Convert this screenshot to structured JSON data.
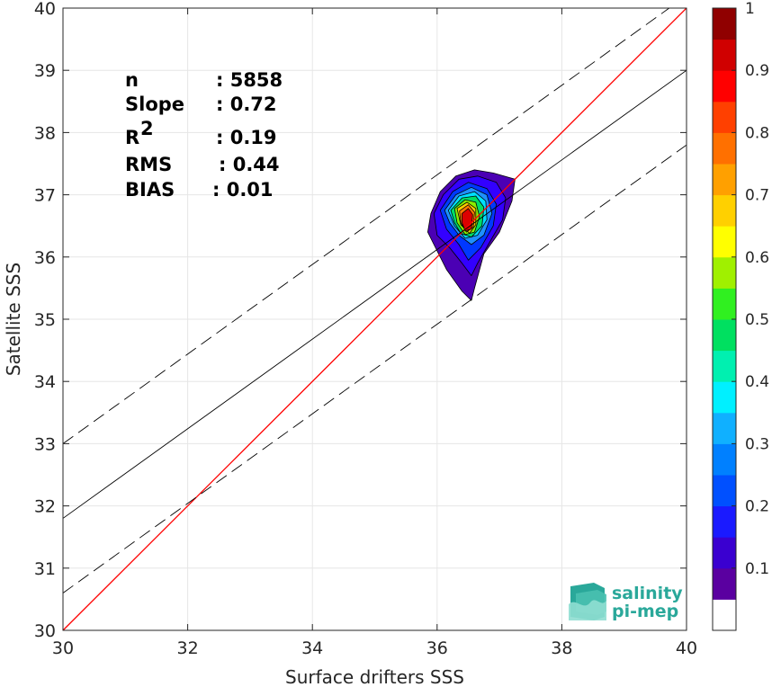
{
  "chart_data": {
    "type": "scatter",
    "title": "",
    "xlabel": "Surface drifters SSS",
    "ylabel": "Satellite SSS",
    "xlim": [
      30,
      40
    ],
    "ylim": [
      30,
      40
    ],
    "xticks": [
      30,
      32,
      34,
      36,
      38,
      40
    ],
    "yticks": [
      30,
      31,
      32,
      33,
      34,
      35,
      36,
      37,
      38,
      39,
      40
    ],
    "grid": true,
    "stats": [
      {
        "label": "n",
        "value": ": 5858"
      },
      {
        "label": "Slope",
        "value": ": 0.72"
      },
      {
        "label": "R",
        "sup": "2",
        "value": ": 0.19"
      },
      {
        "label": "RMS",
        "value": ": 0.44"
      },
      {
        "label": "BIAS",
        "value": ": 0.01"
      }
    ],
    "lines": [
      {
        "kind": "identity",
        "color": "#ff0000",
        "slope": 1,
        "intercept": 0
      },
      {
        "kind": "regression",
        "color": "#000000",
        "slope": 0.72,
        "intercept": 10.2
      },
      {
        "kind": "upper-bound",
        "color": "#000000",
        "dashed": true,
        "slope": 0.72,
        "intercept": 11.4
      },
      {
        "kind": "lower-bound",
        "color": "#000000",
        "dashed": true,
        "slope": 0.72,
        "intercept": 9.0
      }
    ],
    "density_contours": {
      "center": [
        36.5,
        36.55
      ],
      "levels": [
        {
          "level": 0.05,
          "color": "#4b00b4",
          "x": [
            35.9,
            36.05,
            36.3,
            36.6,
            36.9,
            37.25,
            37.2,
            37.0,
            36.75,
            36.6,
            36.55,
            36.4,
            36.15,
            35.95,
            35.85
          ],
          "y": [
            36.7,
            37.05,
            37.3,
            37.4,
            37.35,
            37.25,
            36.9,
            36.4,
            36.05,
            35.5,
            35.3,
            35.45,
            35.8,
            36.2,
            36.4
          ]
        },
        {
          "level": 0.1,
          "color": "#3300ff",
          "x": [
            35.95,
            36.1,
            36.35,
            36.65,
            36.95,
            37.1,
            37.05,
            36.85,
            36.65,
            36.55,
            36.4,
            36.2,
            36.0
          ],
          "y": [
            36.7,
            37.0,
            37.25,
            37.3,
            37.2,
            36.95,
            36.6,
            36.25,
            35.9,
            35.7,
            35.9,
            36.15,
            36.35
          ]
        },
        {
          "level": 0.2,
          "color": "#0038ff",
          "x": [
            36.05,
            36.25,
            36.5,
            36.8,
            36.95,
            36.9,
            36.7,
            36.5,
            36.35,
            36.15
          ],
          "y": [
            36.75,
            37.05,
            37.2,
            37.1,
            36.85,
            36.5,
            36.15,
            35.95,
            36.2,
            36.45
          ]
        },
        {
          "level": 0.3,
          "color": "#1e90ff",
          "x": [
            36.12,
            36.3,
            36.55,
            36.8,
            36.88,
            36.75,
            36.55,
            36.35,
            36.2
          ],
          "y": [
            36.75,
            37.0,
            37.12,
            37.0,
            36.7,
            36.35,
            36.2,
            36.35,
            36.55
          ]
        },
        {
          "level": 0.4,
          "color": "#00e0ff",
          "x": [
            36.18,
            36.35,
            36.6,
            36.78,
            36.8,
            36.65,
            36.45,
            36.28
          ],
          "y": [
            36.75,
            36.98,
            37.05,
            36.9,
            36.6,
            36.35,
            36.3,
            36.5
          ]
        },
        {
          "level": 0.5,
          "color": "#00dd66",
          "x": [
            36.22,
            36.4,
            36.62,
            36.75,
            36.72,
            36.55,
            36.38,
            36.28
          ],
          "y": [
            36.75,
            36.95,
            36.98,
            36.8,
            36.5,
            36.32,
            36.38,
            36.55
          ]
        },
        {
          "level": 0.6,
          "color": "#88ee00",
          "x": [
            36.28,
            36.45,
            36.62,
            36.68,
            36.6,
            36.45,
            36.32
          ],
          "y": [
            36.78,
            36.92,
            36.88,
            36.65,
            36.4,
            36.36,
            36.55
          ]
        },
        {
          "level": 0.7,
          "color": "#ffcc00",
          "x": [
            36.32,
            36.48,
            36.62,
            36.62,
            36.52,
            36.38
          ],
          "y": [
            36.78,
            36.88,
            36.78,
            36.52,
            36.38,
            36.52
          ]
        },
        {
          "level": 0.8,
          "color": "#ff7700",
          "x": [
            36.36,
            36.5,
            36.6,
            36.58,
            36.47,
            36.38
          ],
          "y": [
            36.74,
            36.84,
            36.72,
            36.48,
            36.4,
            36.55
          ]
        },
        {
          "level": 0.9,
          "color": "#dd0000",
          "x": [
            36.4,
            36.5,
            36.57,
            36.55,
            36.45,
            36.4
          ],
          "y": [
            36.7,
            36.78,
            36.68,
            36.45,
            36.42,
            36.55
          ]
        }
      ]
    },
    "colorbar": {
      "range": [
        0,
        1
      ],
      "ticks": [
        "0.1",
        "0.2",
        "0.3",
        "0.4",
        "0.5",
        "0.6",
        "0.7",
        "0.8",
        "0.9",
        "1"
      ],
      "tick_values": [
        0.1,
        0.2,
        0.3,
        0.4,
        0.5,
        0.6,
        0.7,
        0.8,
        0.9,
        1
      ],
      "colors": [
        "#ffffff",
        "#5a00a0",
        "#3a00d0",
        "#1a1aff",
        "#0050ff",
        "#0080ff",
        "#10b0ff",
        "#00f0ff",
        "#00f0b0",
        "#00e060",
        "#30f020",
        "#a0f000",
        "#ffff00",
        "#ffd000",
        "#ffa000",
        "#ff7000",
        "#ff4000",
        "#ff0000",
        "#d00000",
        "#900000"
      ]
    }
  },
  "logo": {
    "line1": "salinity",
    "line2": "pi-mep",
    "color": "#2aa89a"
  }
}
